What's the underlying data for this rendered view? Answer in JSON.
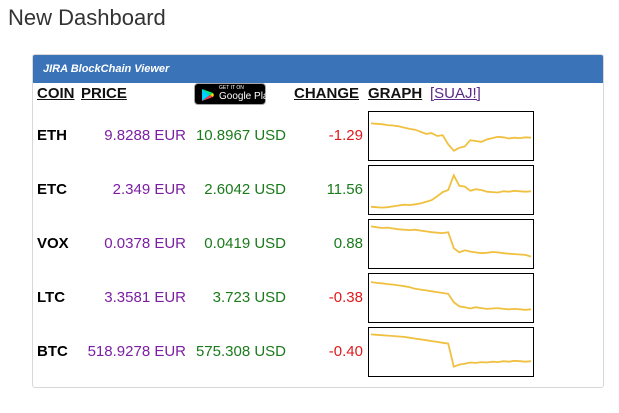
{
  "page": {
    "title": "New Dashboard"
  },
  "panel": {
    "title": "JIRA BlockChain Viewer",
    "headers": {
      "coin": "COIN",
      "price": "PRICE",
      "change": "CHANGE",
      "graph": "GRAPH",
      "link": "[SUAJ!]"
    },
    "google_play": {
      "small": "GET IT ON",
      "big": "Google Play"
    }
  },
  "colors": {
    "header_bg": "#3b73b9",
    "eur_text": "#7b1fa2",
    "usd_text": "#1b7a1b",
    "negative": "#e0191c",
    "positive": "#1b7a1b",
    "sparkline": "#f0c040"
  },
  "coins": [
    {
      "symbol": "ETH",
      "eur": "9.8288 EUR",
      "usd": "10.8967 USD",
      "change": "-1.29",
      "direction": "negative",
      "spark": [
        80,
        79,
        78,
        76,
        75,
        73,
        70,
        67,
        65,
        60,
        55,
        57,
        50,
        52,
        30,
        15,
        22,
        25,
        40,
        38,
        36,
        42,
        45,
        48,
        47,
        44,
        46,
        45,
        47,
        46
      ]
    },
    {
      "symbol": "ETC",
      "eur": "2.349 EUR",
      "usd": "2.6042 USD",
      "change": "11.56",
      "direction": "positive",
      "spark": [
        10,
        9,
        8,
        9,
        11,
        13,
        15,
        14,
        16,
        18,
        22,
        26,
        35,
        45,
        50,
        85,
        60,
        58,
        48,
        52,
        50,
        46,
        45,
        44,
        47,
        46,
        48,
        47,
        46,
        47
      ]
    },
    {
      "symbol": "VOX",
      "eur": "0.0378 EUR",
      "usd": "0.0419 USD",
      "change": "0.88",
      "direction": "positive",
      "spark": [
        92,
        90,
        88,
        89,
        87,
        85,
        84,
        83,
        84,
        82,
        80,
        78,
        77,
        76,
        78,
        40,
        30,
        35,
        32,
        30,
        28,
        29,
        31,
        30,
        28,
        27,
        26,
        25,
        24,
        20
      ]
    },
    {
      "symbol": "LTC",
      "eur": "3.3581 EUR",
      "usd": "3.723 USD",
      "change": "-0.38",
      "direction": "negative",
      "spark": [
        88,
        86,
        85,
        83,
        82,
        80,
        78,
        76,
        72,
        70,
        68,
        66,
        64,
        62,
        60,
        40,
        30,
        28,
        25,
        28,
        26,
        24,
        25,
        26,
        24,
        23,
        24,
        23,
        22,
        23
      ]
    },
    {
      "symbol": "BTC",
      "eur": "518.9278 EUR",
      "usd": "575.308 USD",
      "change": "-0.40",
      "direction": "negative",
      "spark": [
        92,
        91,
        90,
        89,
        88,
        87,
        86,
        84,
        82,
        80,
        78,
        76,
        74,
        72,
        70,
        15,
        20,
        22,
        25,
        24,
        26,
        25,
        27,
        26,
        28,
        27,
        29,
        28,
        27,
        28
      ]
    }
  ]
}
